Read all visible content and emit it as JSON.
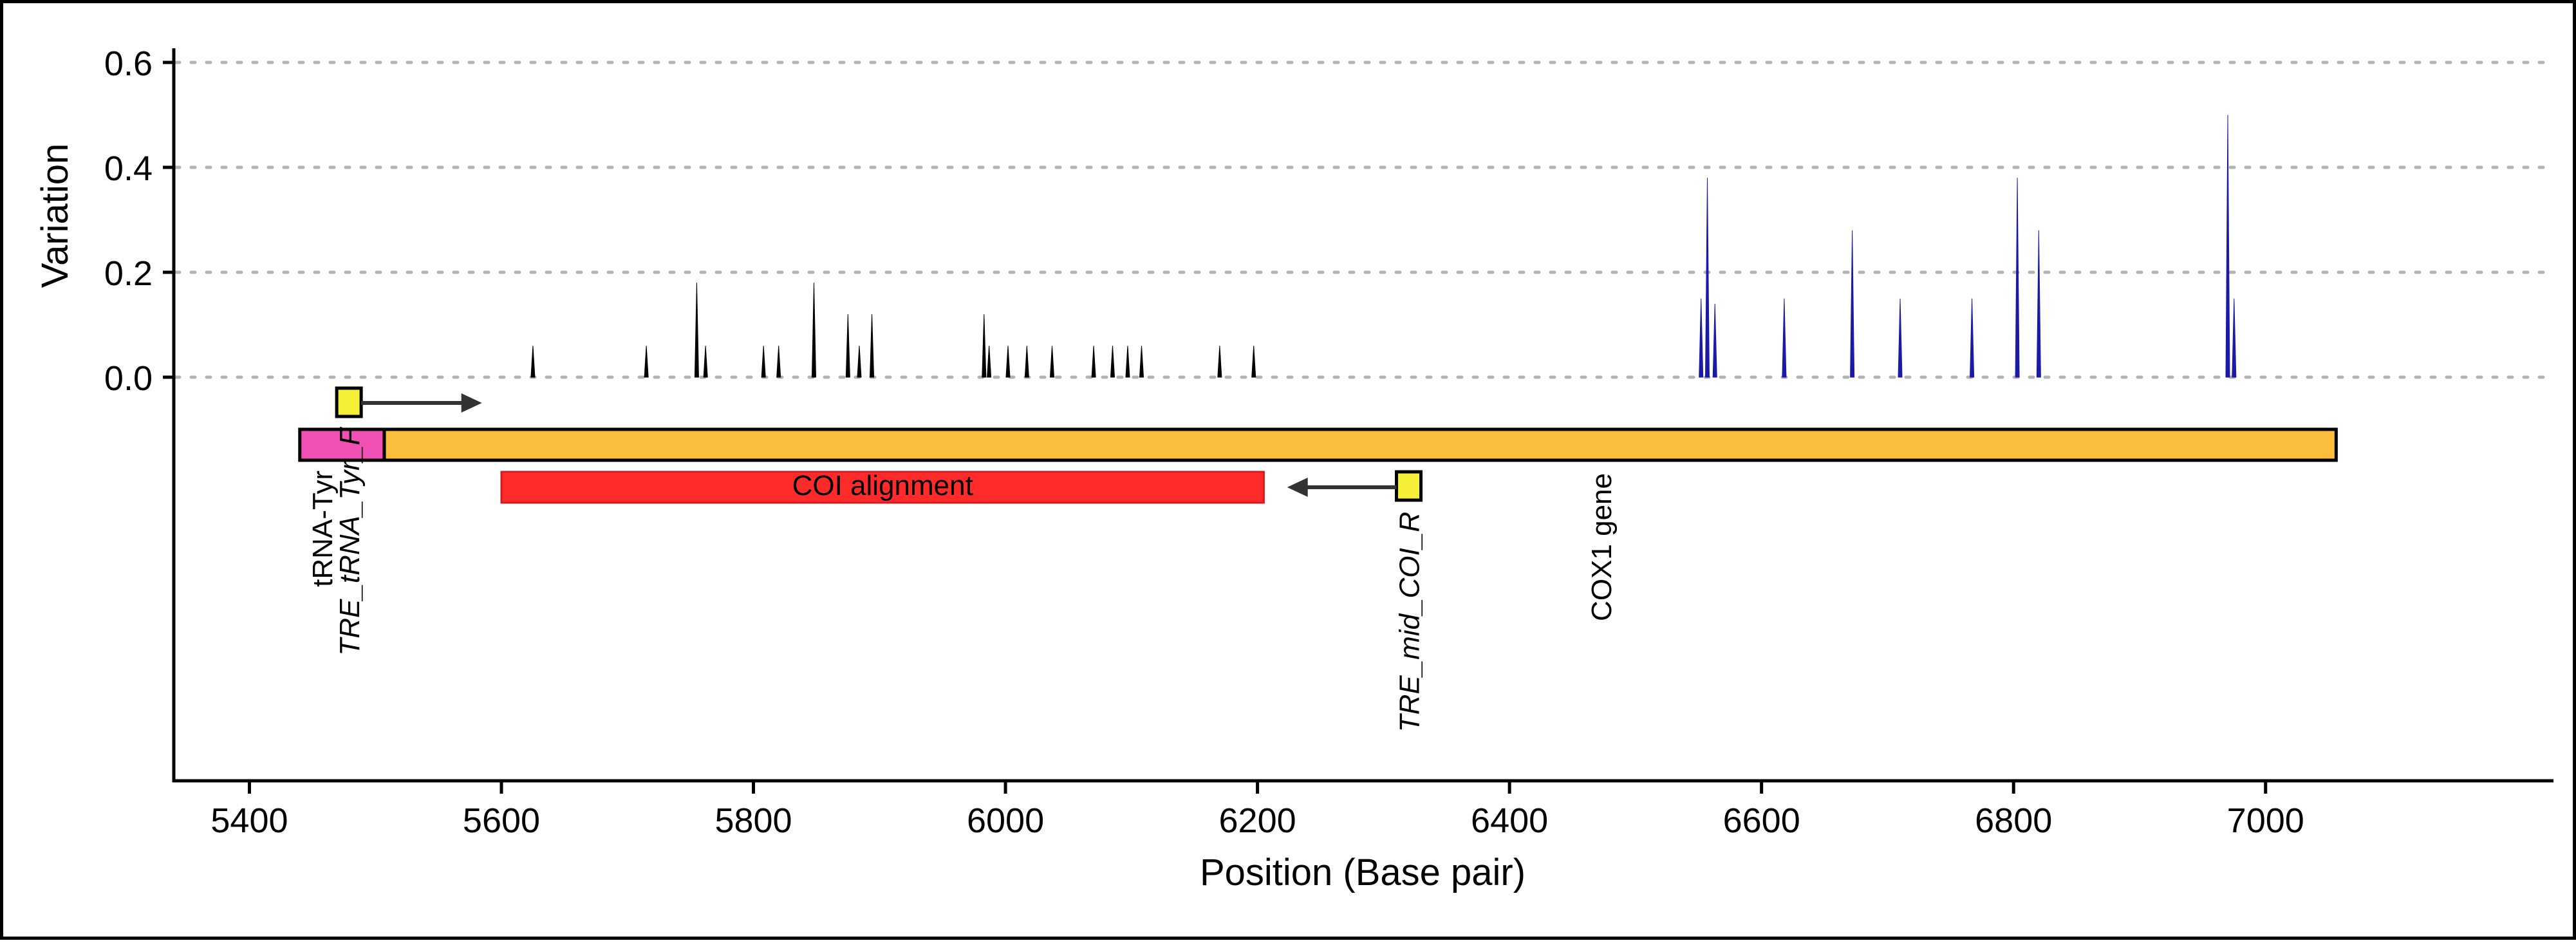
{
  "chart_data": {
    "type": "line",
    "xlabel": "Position (Base pair)",
    "ylabel": "Variation",
    "xlim": [
      5340,
      7230
    ],
    "ylim": [
      0,
      0.6
    ],
    "x_ticks": [
      5400,
      5600,
      5800,
      6000,
      6200,
      6400,
      6600,
      6800,
      7000
    ],
    "x_tick_labels": [
      "5400",
      "5600",
      "5800",
      "6000",
      "6200",
      "6400",
      "6600",
      "6800",
      "7000"
    ],
    "y_ticks": [
      0.0,
      0.2,
      0.4,
      0.6
    ],
    "y_tick_labels": [
      "0.0",
      "0.2",
      "0.4",
      "0.6"
    ],
    "grid": "horizontal dotted",
    "series": [
      {
        "color": "#000000",
        "peaks": [
          {
            "x": 5625,
            "y": 0.06
          },
          {
            "x": 5715,
            "y": 0.06
          },
          {
            "x": 5755,
            "y": 0.18
          },
          {
            "x": 5762,
            "y": 0.06
          },
          {
            "x": 5808,
            "y": 0.06
          },
          {
            "x": 5820,
            "y": 0.06
          },
          {
            "x": 5848,
            "y": 0.18
          },
          {
            "x": 5875,
            "y": 0.12
          },
          {
            "x": 5884,
            "y": 0.06
          },
          {
            "x": 5894,
            "y": 0.12
          },
          {
            "x": 5983,
            "y": 0.12
          },
          {
            "x": 5987,
            "y": 0.06
          },
          {
            "x": 6002,
            "y": 0.06
          },
          {
            "x": 6017,
            "y": 0.06
          },
          {
            "x": 6037,
            "y": 0.06
          },
          {
            "x": 6070,
            "y": 0.06
          },
          {
            "x": 6085,
            "y": 0.06
          },
          {
            "x": 6097,
            "y": 0.06
          },
          {
            "x": 6108,
            "y": 0.06
          },
          {
            "x": 6170,
            "y": 0.06
          },
          {
            "x": 6197,
            "y": 0.06
          }
        ]
      },
      {
        "color": "#1a1aa6",
        "peaks": [
          {
            "x": 6552,
            "y": 0.15
          },
          {
            "x": 6557,
            "y": 0.38
          },
          {
            "x": 6563,
            "y": 0.14
          },
          {
            "x": 6618,
            "y": 0.15
          },
          {
            "x": 6672,
            "y": 0.28
          },
          {
            "x": 6710,
            "y": 0.15
          },
          {
            "x": 6767,
            "y": 0.15
          },
          {
            "x": 6803,
            "y": 0.38
          },
          {
            "x": 6820,
            "y": 0.28
          },
          {
            "x": 6970,
            "y": 0.5
          },
          {
            "x": 6975,
            "y": 0.15
          }
        ]
      }
    ],
    "features": [
      {
        "name": "tRNA-Tyr",
        "start": 5440,
        "end": 5507,
        "color": "#f24fb4",
        "label_orientation": "vertical"
      },
      {
        "name": "COX1 gene",
        "start": 5507,
        "end": 7056,
        "color": "#fbbd3c",
        "label_orientation": "vertical"
      },
      {
        "name": "COI alignment",
        "start": 5600,
        "end": 6205,
        "color": "#ff2a2a",
        "label_orientation": "horizontal"
      }
    ],
    "primers": [
      {
        "name": "TRE_tRNA_Tyr_F",
        "position": 5479,
        "direction": "forward",
        "arrow_end": 5560,
        "color": "#f6ef38"
      },
      {
        "name": "TRE_mid_COI_R",
        "position": 6320,
        "direction": "reverse",
        "arrow_end": 6245,
        "color": "#f6ef38"
      }
    ]
  }
}
